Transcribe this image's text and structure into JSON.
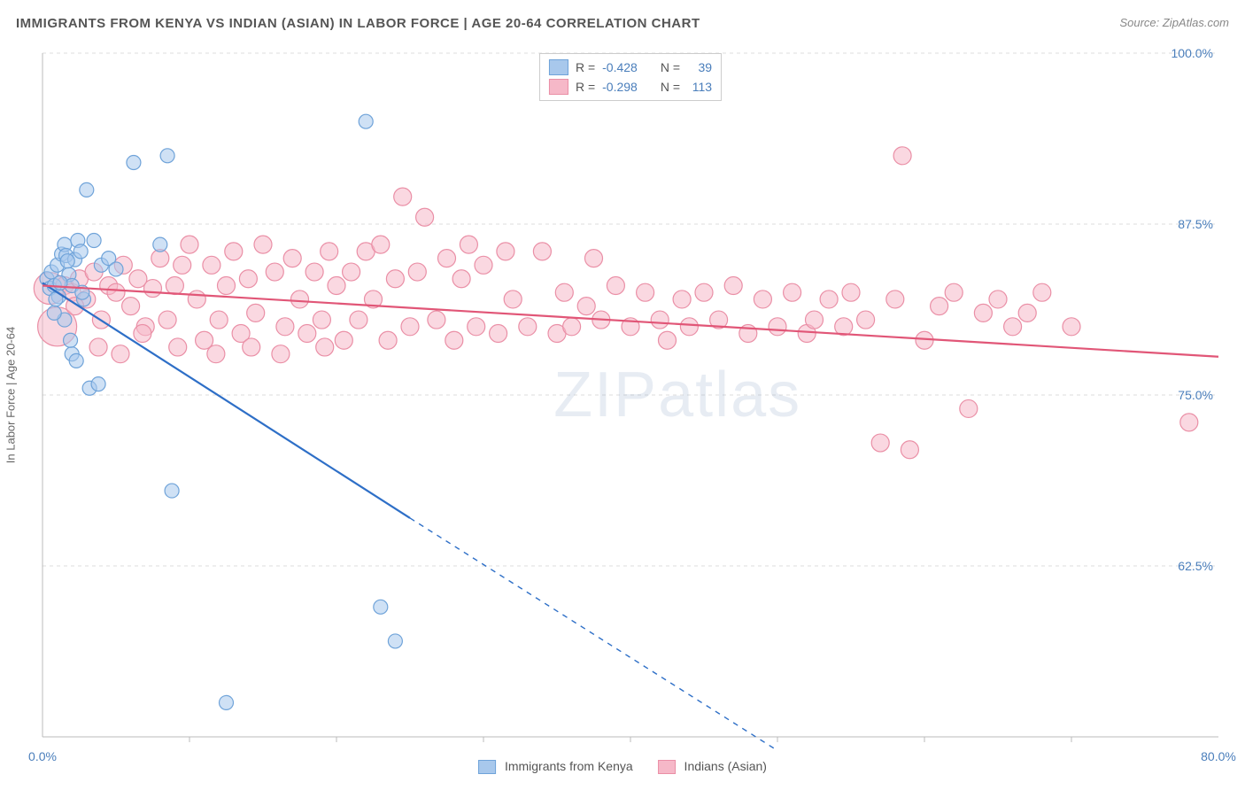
{
  "title": "IMMIGRANTS FROM KENYA VS INDIAN (ASIAN) IN LABOR FORCE | AGE 20-64 CORRELATION CHART",
  "source": "Source: ZipAtlas.com",
  "watermark": "ZIPatlas",
  "yaxis_label": "In Labor Force | Age 20-64",
  "chart": {
    "type": "scatter",
    "xlim": [
      0,
      80
    ],
    "ylim": [
      50,
      100
    ],
    "xtick_labels": [
      "0.0%",
      "80.0%"
    ],
    "xtick_positions": [
      0,
      80
    ],
    "xtick_minor": [
      10,
      20,
      30,
      40,
      50,
      60,
      70
    ],
    "ytick_labels": [
      "62.5%",
      "75.0%",
      "87.5%",
      "100.0%"
    ],
    "ytick_positions": [
      62.5,
      75,
      87.5,
      100
    ],
    "grid_color": "#dddddd",
    "axis_color": "#bbbbbb",
    "background_color": "#ffffff",
    "series": [
      {
        "name": "Immigrants from Kenya",
        "fill": "#a8c8ec",
        "stroke": "#6fa3d9",
        "fill_opacity": 0.55,
        "marker_r": 8,
        "line_color": "#2e6fc7",
        "line_width": 2.2,
        "trend_solid": [
          [
            0,
            83.2
          ],
          [
            25,
            66
          ]
        ],
        "trend_dashed": [
          [
            25,
            66
          ],
          [
            50,
            49
          ]
        ],
        "R": "-0.428",
        "N": "39",
        "points": [
          [
            0.3,
            83.5
          ],
          [
            0.5,
            82.8
          ],
          [
            0.6,
            84.0
          ],
          [
            0.8,
            83.0
          ],
          [
            1.0,
            84.5
          ],
          [
            1.1,
            82.2
          ],
          [
            1.3,
            85.3
          ],
          [
            1.5,
            86.0
          ],
          [
            1.6,
            85.2
          ],
          [
            1.8,
            83.8
          ],
          [
            2.0,
            83.0
          ],
          [
            2.2,
            84.9
          ],
          [
            2.4,
            86.3
          ],
          [
            2.6,
            85.5
          ],
          [
            2.8,
            82.0
          ],
          [
            3.0,
            90.0
          ],
          [
            3.5,
            86.3
          ],
          [
            4.0,
            84.5
          ],
          [
            1.5,
            80.5
          ],
          [
            2.0,
            78.0
          ],
          [
            0.8,
            81.0
          ],
          [
            4.5,
            85.0
          ],
          [
            1.9,
            79.0
          ],
          [
            2.3,
            77.5
          ],
          [
            3.2,
            75.5
          ],
          [
            3.8,
            75.8
          ],
          [
            5.0,
            84.2
          ],
          [
            6.2,
            92.0
          ],
          [
            8.5,
            92.5
          ],
          [
            8.0,
            86.0
          ],
          [
            8.8,
            68.0
          ],
          [
            12.5,
            52.5
          ],
          [
            22.0,
            95.0
          ],
          [
            23.0,
            59.5
          ],
          [
            24.0,
            57.0
          ],
          [
            2.7,
            82.5
          ],
          [
            1.2,
            83.2
          ],
          [
            0.9,
            82.0
          ],
          [
            1.7,
            84.8
          ]
        ]
      },
      {
        "name": "Indians (Asian)",
        "fill": "#f6b8c8",
        "stroke": "#ea8fa6",
        "fill_opacity": 0.55,
        "marker_r": 10,
        "line_color": "#e15677",
        "line_width": 2.2,
        "trend_solid": [
          [
            0,
            83.0
          ],
          [
            80,
            77.8
          ]
        ],
        "trend_dashed": null,
        "R": "-0.298",
        "N": "113",
        "points": [
          [
            0.5,
            82.8,
            18
          ],
          [
            1.0,
            80.0,
            22
          ],
          [
            1.5,
            83.0
          ],
          [
            2.0,
            82.5
          ],
          [
            2.5,
            83.5
          ],
          [
            3.0,
            82.0
          ],
          [
            3.5,
            84.0
          ],
          [
            4.0,
            80.5
          ],
          [
            4.5,
            83.0
          ],
          [
            5.0,
            82.5
          ],
          [
            5.5,
            84.5
          ],
          [
            6.0,
            81.5
          ],
          [
            6.5,
            83.5
          ],
          [
            7.0,
            80.0
          ],
          [
            7.5,
            82.8
          ],
          [
            8.0,
            85.0
          ],
          [
            8.5,
            80.5
          ],
          [
            9.0,
            83.0
          ],
          [
            9.5,
            84.5
          ],
          [
            10.0,
            86.0
          ],
          [
            10.5,
            82.0
          ],
          [
            11.0,
            79.0
          ],
          [
            11.5,
            84.5
          ],
          [
            12.0,
            80.5
          ],
          [
            12.5,
            83.0
          ],
          [
            13.0,
            85.5
          ],
          [
            13.5,
            79.5
          ],
          [
            14.0,
            83.5
          ],
          [
            14.5,
            81.0
          ],
          [
            15.0,
            86.0
          ],
          [
            15.8,
            84.0
          ],
          [
            16.5,
            80.0
          ],
          [
            17.0,
            85.0
          ],
          [
            17.5,
            82.0
          ],
          [
            18.0,
            79.5
          ],
          [
            18.5,
            84.0
          ],
          [
            19.0,
            80.5
          ],
          [
            19.5,
            85.5
          ],
          [
            20.0,
            83.0
          ],
          [
            20.5,
            79.0
          ],
          [
            21.0,
            84.0
          ],
          [
            21.5,
            80.5
          ],
          [
            22.0,
            85.5
          ],
          [
            22.5,
            82.0
          ],
          [
            23.0,
            86.0
          ],
          [
            23.5,
            79.0
          ],
          [
            24.0,
            83.5
          ],
          [
            24.5,
            89.5
          ],
          [
            25.0,
            80.0
          ],
          [
            25.5,
            84.0
          ],
          [
            26.0,
            88.0
          ],
          [
            26.8,
            80.5
          ],
          [
            27.5,
            85.0
          ],
          [
            28.0,
            79.0
          ],
          [
            28.5,
            83.5
          ],
          [
            29.0,
            86.0
          ],
          [
            29.5,
            80.0
          ],
          [
            30.0,
            84.5
          ],
          [
            31.0,
            79.5
          ],
          [
            31.5,
            85.5
          ],
          [
            32.0,
            82.0
          ],
          [
            33.0,
            80.0
          ],
          [
            34.0,
            85.5
          ],
          [
            35.0,
            79.5
          ],
          [
            35.5,
            82.5
          ],
          [
            36.0,
            80.0
          ],
          [
            37.0,
            81.5
          ],
          [
            37.5,
            85.0
          ],
          [
            38.0,
            80.5
          ],
          [
            39.0,
            83.0
          ],
          [
            40.0,
            80.0
          ],
          [
            41.0,
            82.5
          ],
          [
            42.0,
            80.5
          ],
          [
            42.5,
            79.0
          ],
          [
            43.5,
            82.0
          ],
          [
            44.0,
            80.0
          ],
          [
            45.0,
            82.5
          ],
          [
            46.0,
            80.5
          ],
          [
            47.0,
            83.0
          ],
          [
            48.0,
            79.5
          ],
          [
            49.0,
            82.0
          ],
          [
            50.0,
            80.0
          ],
          [
            51.0,
            82.5
          ],
          [
            52.0,
            79.5
          ],
          [
            52.5,
            80.5
          ],
          [
            53.5,
            82.0
          ],
          [
            54.5,
            80.0
          ],
          [
            55.0,
            82.5
          ],
          [
            56.0,
            80.5
          ],
          [
            57.0,
            71.5
          ],
          [
            58.0,
            82.0
          ],
          [
            58.5,
            92.5
          ],
          [
            59.0,
            71.0
          ],
          [
            60.0,
            79.0
          ],
          [
            61.0,
            81.5
          ],
          [
            62.0,
            82.5
          ],
          [
            63.0,
            74.0
          ],
          [
            64.0,
            81.0
          ],
          [
            65.0,
            82.0
          ],
          [
            66.0,
            80.0
          ],
          [
            67.0,
            81.0
          ],
          [
            68.0,
            82.5
          ],
          [
            70.0,
            80.0
          ],
          [
            78.0,
            73.0
          ],
          [
            2.2,
            81.5
          ],
          [
            3.8,
            78.5
          ],
          [
            5.3,
            78.0
          ],
          [
            6.8,
            79.5
          ],
          [
            9.2,
            78.5
          ],
          [
            11.8,
            78.0
          ],
          [
            14.2,
            78.5
          ],
          [
            16.2,
            78.0
          ],
          [
            19.2,
            78.5
          ]
        ]
      }
    ]
  }
}
